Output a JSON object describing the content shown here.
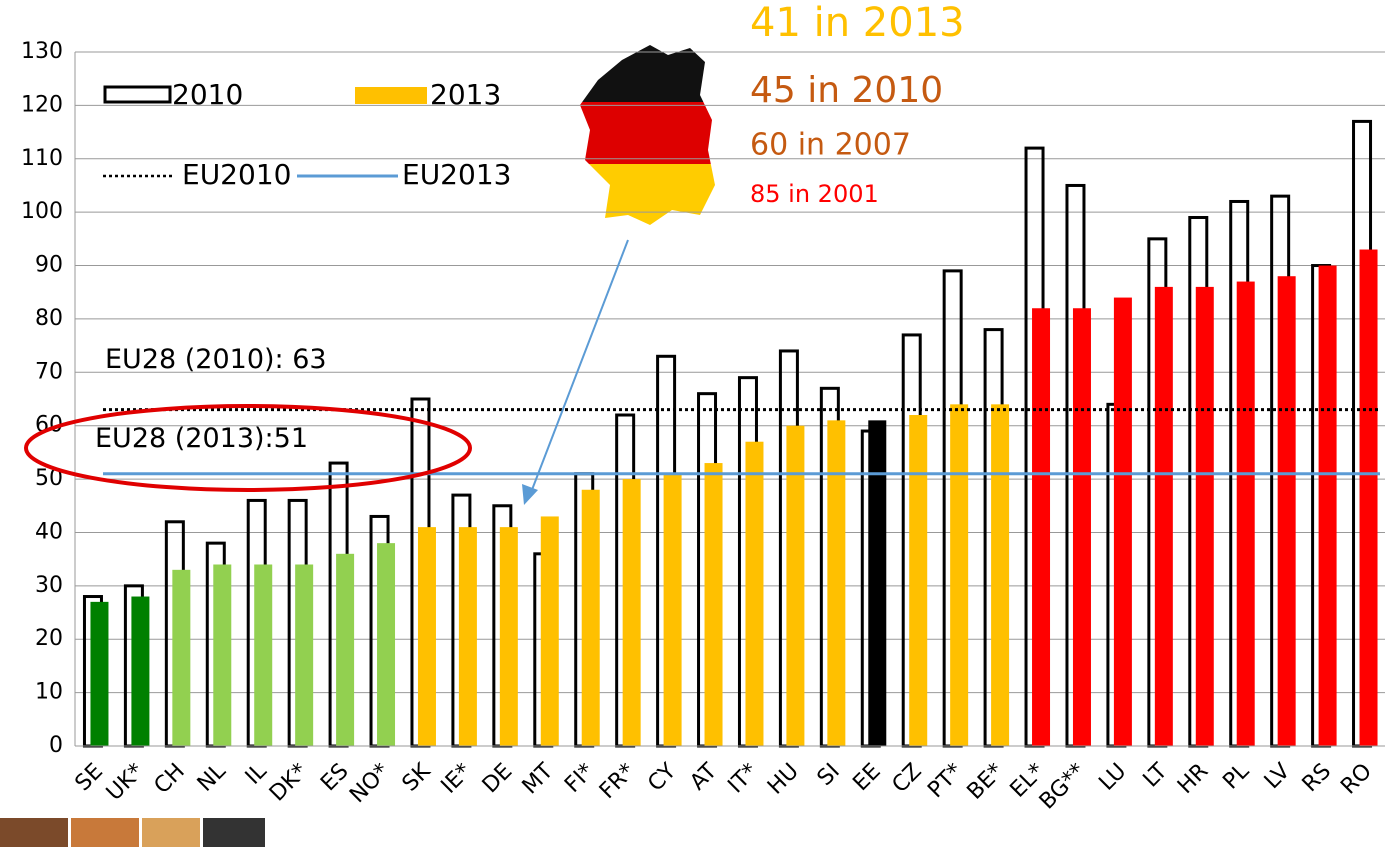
{
  "chart_data": {
    "type": "bar",
    "categories": [
      "SE",
      "UK*",
      "CH",
      "NL",
      "IL",
      "DK*",
      "ES",
      "NO*",
      "SK",
      "IE*",
      "DE",
      "MT",
      "FI*",
      "FR*",
      "CY",
      "AT",
      "IT*",
      "HU",
      "SI",
      "EE",
      "CZ",
      "PT*",
      "BE*",
      "EL*",
      "BG**",
      "LU",
      "LT",
      "HR",
      "PL",
      "LV",
      "RS",
      "RO"
    ],
    "series": [
      {
        "name": "2010",
        "style": "outline",
        "color": "#000000",
        "values": [
          28,
          30,
          42,
          38,
          46,
          46,
          53,
          43,
          65,
          47,
          45,
          36,
          51,
          62,
          73,
          66,
          69,
          74,
          67,
          59,
          77,
          89,
          78,
          112,
          105,
          64,
          95,
          99,
          102,
          103,
          90,
          117
        ]
      },
      {
        "name": "2013",
        "style": "filled",
        "color": "#FFC000",
        "values": [
          27,
          28,
          33,
          34,
          34,
          34,
          36,
          38,
          41,
          41,
          41,
          43,
          48,
          50,
          51,
          53,
          57,
          60,
          61,
          61,
          62,
          64,
          64,
          82,
          82,
          84,
          86,
          86,
          87,
          88,
          90,
          93
        ],
        "colors": [
          "#008000",
          "#008000",
          "#92D050",
          "#92D050",
          "#92D050",
          "#92D050",
          "#92D050",
          "#92D050",
          "#FFC000",
          "#FFC000",
          "#FFC000",
          "#FFC000",
          "#FFC000",
          "#FFC000",
          "#FFC000",
          "#FFC000",
          "#FFC000",
          "#FFC000",
          "#FFC000",
          "#000000",
          "#FFC000",
          "#FFC000",
          "#FFC000",
          "#FF0000",
          "#FF0000",
          "#FF0000",
          "#FF0000",
          "#FF0000",
          "#FF0000",
          "#FF0000",
          "#FF0000",
          "#FF0000"
        ]
      }
    ],
    "reference_lines": [
      {
        "name": "EU2010",
        "value": 63,
        "style": "dotted",
        "color": "#000000",
        "label": "EU28 (2010): 63"
      },
      {
        "name": "EU2013",
        "value": 51,
        "style": "solid",
        "color": "#5B9BD5",
        "label": "EU28 (2013):51"
      }
    ],
    "annotations": [
      {
        "text": "41 in 2013",
        "color": "#FFC000"
      },
      {
        "text": "45 in 2010",
        "color": "#C55A11"
      },
      {
        "text": "60 in 2007",
        "color": "#C55A11"
      },
      {
        "text": "85 in 2001",
        "color": "#FF0000"
      }
    ],
    "ylim": [
      0,
      130
    ],
    "yticks": [
      0,
      10,
      20,
      30,
      40,
      50,
      60,
      70,
      80,
      90,
      100,
      110,
      120,
      130
    ],
    "grid": true
  }
}
